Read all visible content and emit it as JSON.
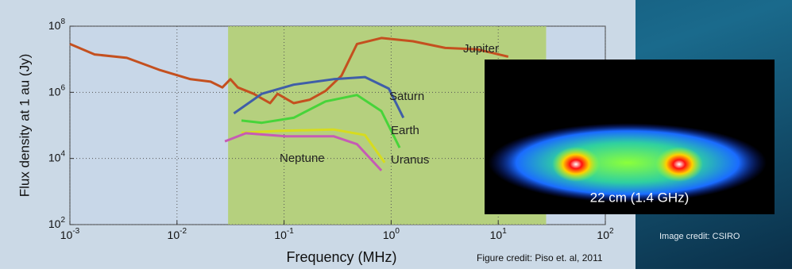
{
  "chart_data": {
    "type": "line",
    "x_label": "Frequency (MHz)",
    "y_label": "Flux density at 1 au (Jy)",
    "xscale": "log",
    "yscale": "log",
    "grid": true,
    "xlim": [
      0.001,
      100
    ],
    "ylim": [
      100,
      100000000
    ],
    "xticks": [
      {
        "value": 0.001,
        "label": "10",
        "exponent": "-3"
      },
      {
        "value": 0.01,
        "label": "10",
        "exponent": "-2"
      },
      {
        "value": 0.1,
        "label": "10",
        "exponent": "-1"
      },
      {
        "value": 1,
        "label": "10",
        "exponent": "0"
      },
      {
        "value": 10,
        "label": "10",
        "exponent": "1"
      },
      {
        "value": 100,
        "label": "10",
        "exponent": "2"
      }
    ],
    "yticks": [
      {
        "value": 100,
        "label": "10",
        "exponent": "2"
      },
      {
        "value": 10000,
        "label": "10",
        "exponent": "4"
      },
      {
        "value": 1000000,
        "label": "10",
        "exponent": "6"
      },
      {
        "value": 100000000,
        "label": "10",
        "exponent": "8"
      }
    ],
    "shaded_region": {
      "x": [
        0.03,
        28
      ],
      "color": "#b3cf72"
    },
    "series": [
      {
        "name": "Jupiter",
        "color": "#c4501f",
        "x": [
          0.001,
          0.0017,
          0.0034,
          0.0068,
          0.0134,
          0.0206,
          0.0265,
          0.0315,
          0.037,
          0.052,
          0.074,
          0.087,
          0.123,
          0.174,
          0.244,
          0.344,
          0.48,
          0.81,
          1.6,
          3.2,
          6.3,
          12.4
        ],
        "values": [
          29000000,
          14000000,
          11000000,
          4800000,
          2500000,
          2100000,
          1400000,
          2500000,
          1400000,
          900000,
          470000,
          900000,
          470000,
          600000,
          1100000,
          3200000,
          29000000,
          44000000,
          35000000,
          22000000,
          20000000,
          12000000
        ]
      },
      {
        "name": "Saturn",
        "color": "#3f5ea8",
        "x": [
          0.034,
          0.062,
          0.123,
          0.29,
          0.57,
          0.95,
          1.3
        ],
        "values": [
          230000,
          900000,
          1700000,
          2500000,
          2900000,
          1300000,
          170000
        ]
      },
      {
        "name": "Earth",
        "color": "#47d43a",
        "x": [
          0.04,
          0.062,
          0.123,
          0.244,
          0.48,
          0.81,
          1.2
        ],
        "values": [
          140000,
          120000,
          170000,
          530000,
          830000,
          270000,
          21000
        ]
      },
      {
        "name": "Uranus",
        "color": "#d7dc1e",
        "x": [
          0.04,
          0.087,
          0.29,
          0.57,
          0.87
        ],
        "values": [
          60000,
          68000,
          75000,
          51000,
          7500
        ]
      },
      {
        "name": "Neptune",
        "color": "#c65bb5",
        "x": [
          0.028,
          0.044,
          0.104,
          0.29,
          0.48,
          0.81
        ],
        "values": [
          33000,
          58000,
          47000,
          47000,
          27000,
          4300
        ]
      }
    ]
  },
  "figure_credit": "Figure credit: Piso et. al, 2011",
  "inset": {
    "caption": "22 cm (1.4 GHz)",
    "credit": "Image credit: CSIRO"
  }
}
